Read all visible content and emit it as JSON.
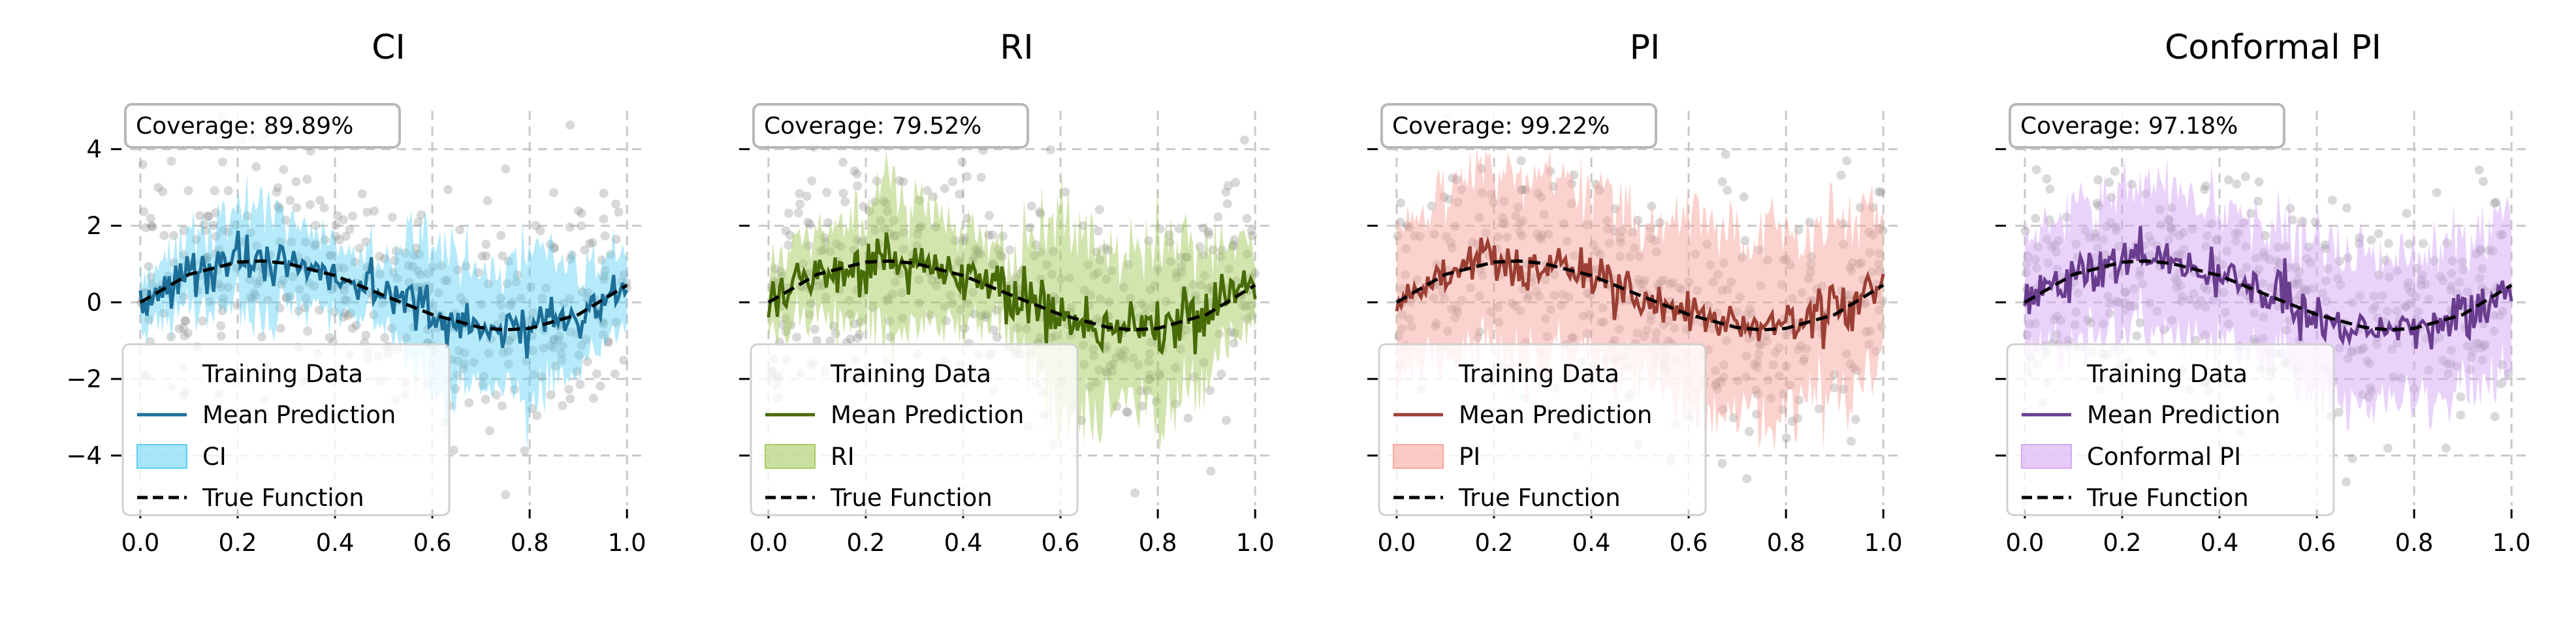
{
  "colors": {
    "training_points": "#8a8a8a",
    "grid": "#c8c8c8",
    "true_function": "#000000",
    "axis_text": "#000000",
    "legend_border": "#d0d0d0",
    "coverage_border": "#b8b8b8"
  },
  "chart_data": [
    {
      "type": "line",
      "title": "CI",
      "xlabel": "",
      "ylabel": "",
      "xlim": [
        -0.02,
        1.04
      ],
      "ylim": [
        -5.3,
        5.0
      ],
      "x_ticks": [
        0.0,
        0.2,
        0.4,
        0.6,
        0.8,
        1.0
      ],
      "x_tick_labels": [
        "0.0",
        "0.2",
        "0.4",
        "0.6",
        "0.8",
        "1.0"
      ],
      "y_ticks": [
        -4,
        -2,
        0,
        2,
        4
      ],
      "y_tick_labels": [
        "−4",
        "−2",
        "0",
        "2",
        "4"
      ],
      "grid": true,
      "coverage_text": "Coverage: 89.89%",
      "legend_position": "lower-left",
      "legend": [
        "Training Data",
        "Mean Prediction",
        "CI",
        "True Function"
      ],
      "mean_color": "#1d6f99",
      "band_color": "#5cd0f5",
      "band_opacity": 0.45,
      "noise_seed": 11,
      "band_half_width": [
        [
          0.0,
          0.8
        ],
        [
          0.1,
          1.2
        ],
        [
          0.2,
          1.6
        ],
        [
          0.25,
          2.0
        ],
        [
          0.3,
          1.5
        ],
        [
          0.4,
          1.2
        ],
        [
          0.5,
          1.0
        ],
        [
          0.55,
          2.0
        ],
        [
          0.6,
          2.6
        ],
        [
          0.65,
          2.4
        ],
        [
          0.7,
          2.0
        ],
        [
          0.75,
          1.8
        ],
        [
          0.8,
          2.6
        ],
        [
          0.85,
          2.0
        ],
        [
          0.9,
          1.6
        ],
        [
          1.0,
          1.2
        ]
      ],
      "series": [
        {
          "name": "True Function",
          "x": [
            0.0,
            0.1,
            0.2,
            0.25,
            0.3,
            0.4,
            0.5,
            0.6,
            0.7,
            0.75,
            0.8,
            0.9,
            1.0
          ],
          "y": [
            0.0,
            0.73,
            1.05,
            1.08,
            1.02,
            0.7,
            0.18,
            -0.32,
            -0.66,
            -0.72,
            -0.68,
            -0.32,
            0.45
          ]
        }
      ]
    },
    {
      "type": "line",
      "title": "RI",
      "xlabel": "",
      "ylabel": "",
      "xlim": [
        -0.02,
        1.04
      ],
      "ylim": [
        -5.3,
        5.0
      ],
      "x_ticks": [
        0.0,
        0.2,
        0.4,
        0.6,
        0.8,
        1.0
      ],
      "x_tick_labels": [
        "0.0",
        "0.2",
        "0.4",
        "0.6",
        "0.8",
        "1.0"
      ],
      "y_ticks": [
        -4,
        -2,
        0,
        2,
        4
      ],
      "y_tick_labels": [
        "",
        "",
        "",
        "",
        ""
      ],
      "grid": true,
      "coverage_text": "Coverage: 79.52%",
      "legend_position": "lower-left",
      "legend": [
        "Training Data",
        "Mean Prediction",
        "RI",
        "True Function"
      ],
      "mean_color": "#476b07",
      "band_color": "#a8cc60",
      "band_opacity": 0.5,
      "noise_seed": 23,
      "band_half_width": [
        [
          0.0,
          1.0
        ],
        [
          0.1,
          1.6
        ],
        [
          0.2,
          2.0
        ],
        [
          0.25,
          3.0
        ],
        [
          0.3,
          2.0
        ],
        [
          0.4,
          1.5
        ],
        [
          0.5,
          1.3
        ],
        [
          0.55,
          2.5
        ],
        [
          0.6,
          3.5
        ],
        [
          0.65,
          3.2
        ],
        [
          0.7,
          2.6
        ],
        [
          0.75,
          2.4
        ],
        [
          0.8,
          3.0
        ],
        [
          0.85,
          2.5
        ],
        [
          0.9,
          2.0
        ],
        [
          1.0,
          1.4
        ]
      ],
      "series": [
        {
          "name": "True Function",
          "x": [
            0.0,
            0.1,
            0.2,
            0.25,
            0.3,
            0.4,
            0.5,
            0.6,
            0.7,
            0.75,
            0.8,
            0.9,
            1.0
          ],
          "y": [
            0.0,
            0.73,
            1.05,
            1.08,
            1.02,
            0.7,
            0.18,
            -0.32,
            -0.66,
            -0.72,
            -0.68,
            -0.32,
            0.45
          ]
        }
      ]
    },
    {
      "type": "line",
      "title": "PI",
      "xlabel": "",
      "ylabel": "",
      "xlim": [
        -0.02,
        1.04
      ],
      "ylim": [
        -5.3,
        5.0
      ],
      "x_ticks": [
        0.0,
        0.2,
        0.4,
        0.6,
        0.8,
        1.0
      ],
      "x_tick_labels": [
        "0.0",
        "0.2",
        "0.4",
        "0.6",
        "0.8",
        "1.0"
      ],
      "y_ticks": [
        -4,
        -2,
        0,
        2,
        4
      ],
      "y_tick_labels": [
        "",
        "",
        "",
        "",
        ""
      ],
      "grid": true,
      "coverage_text": "Coverage: 99.22%",
      "legend_position": "lower-left",
      "legend": [
        "Training Data",
        "Mean Prediction",
        "PI",
        "True Function"
      ],
      "mean_color": "#9b3f34",
      "band_color": "#f7a69c",
      "band_opacity": 0.5,
      "noise_seed": 37,
      "band_half_width": [
        [
          0.0,
          2.4
        ],
        [
          0.1,
          2.8
        ],
        [
          0.2,
          3.0
        ],
        [
          0.25,
          3.2
        ],
        [
          0.3,
          3.0
        ],
        [
          0.4,
          2.8
        ],
        [
          0.5,
          2.8
        ],
        [
          0.55,
          3.0
        ],
        [
          0.6,
          3.2
        ],
        [
          0.65,
          3.4
        ],
        [
          0.7,
          3.2
        ],
        [
          0.75,
          3.0
        ],
        [
          0.8,
          3.2
        ],
        [
          0.85,
          3.0
        ],
        [
          0.9,
          2.9
        ],
        [
          1.0,
          2.8
        ]
      ],
      "series": [
        {
          "name": "True Function",
          "x": [
            0.0,
            0.1,
            0.2,
            0.25,
            0.3,
            0.4,
            0.5,
            0.6,
            0.7,
            0.75,
            0.8,
            0.9,
            1.0
          ],
          "y": [
            0.0,
            0.73,
            1.05,
            1.08,
            1.02,
            0.7,
            0.18,
            -0.32,
            -0.66,
            -0.72,
            -0.68,
            -0.32,
            0.45
          ]
        }
      ]
    },
    {
      "type": "line",
      "title": "Conformal PI",
      "xlabel": "",
      "ylabel": "",
      "xlim": [
        -0.02,
        1.04
      ],
      "ylim": [
        -5.3,
        5.0
      ],
      "x_ticks": [
        0.0,
        0.2,
        0.4,
        0.6,
        0.8,
        1.0
      ],
      "x_tick_labels": [
        "0.0",
        "0.2",
        "0.4",
        "0.6",
        "0.8",
        "1.0"
      ],
      "y_ticks": [
        -4,
        -2,
        0,
        2,
        4
      ],
      "y_tick_labels": [
        "",
        "",
        "",
        "",
        ""
      ],
      "grid": true,
      "coverage_text": "Coverage: 97.18%",
      "legend_position": "lower-left",
      "legend": [
        "Training Data",
        "Mean Prediction",
        "Conformal PI",
        "True Function"
      ],
      "mean_color": "#6a3d8f",
      "band_color": "#d5a8f5",
      "band_opacity": 0.5,
      "noise_seed": 53,
      "band_half_width": [
        [
          0.0,
          2.0
        ],
        [
          0.1,
          2.2
        ],
        [
          0.2,
          2.4
        ],
        [
          0.25,
          2.5
        ],
        [
          0.3,
          2.4
        ],
        [
          0.4,
          2.2
        ],
        [
          0.5,
          2.2
        ],
        [
          0.55,
          2.4
        ],
        [
          0.6,
          2.6
        ],
        [
          0.65,
          2.6
        ],
        [
          0.7,
          2.6
        ],
        [
          0.75,
          2.4
        ],
        [
          0.8,
          2.6
        ],
        [
          0.85,
          2.5
        ],
        [
          0.9,
          2.6
        ],
        [
          1.0,
          2.8
        ]
      ],
      "series": [
        {
          "name": "True Function",
          "x": [
            0.0,
            0.1,
            0.2,
            0.25,
            0.3,
            0.4,
            0.5,
            0.6,
            0.7,
            0.75,
            0.8,
            0.9,
            1.0
          ],
          "y": [
            0.0,
            0.73,
            1.05,
            1.08,
            1.02,
            0.7,
            0.18,
            -0.32,
            -0.66,
            -0.72,
            -0.68,
            -0.32,
            0.45
          ]
        }
      ]
    }
  ]
}
